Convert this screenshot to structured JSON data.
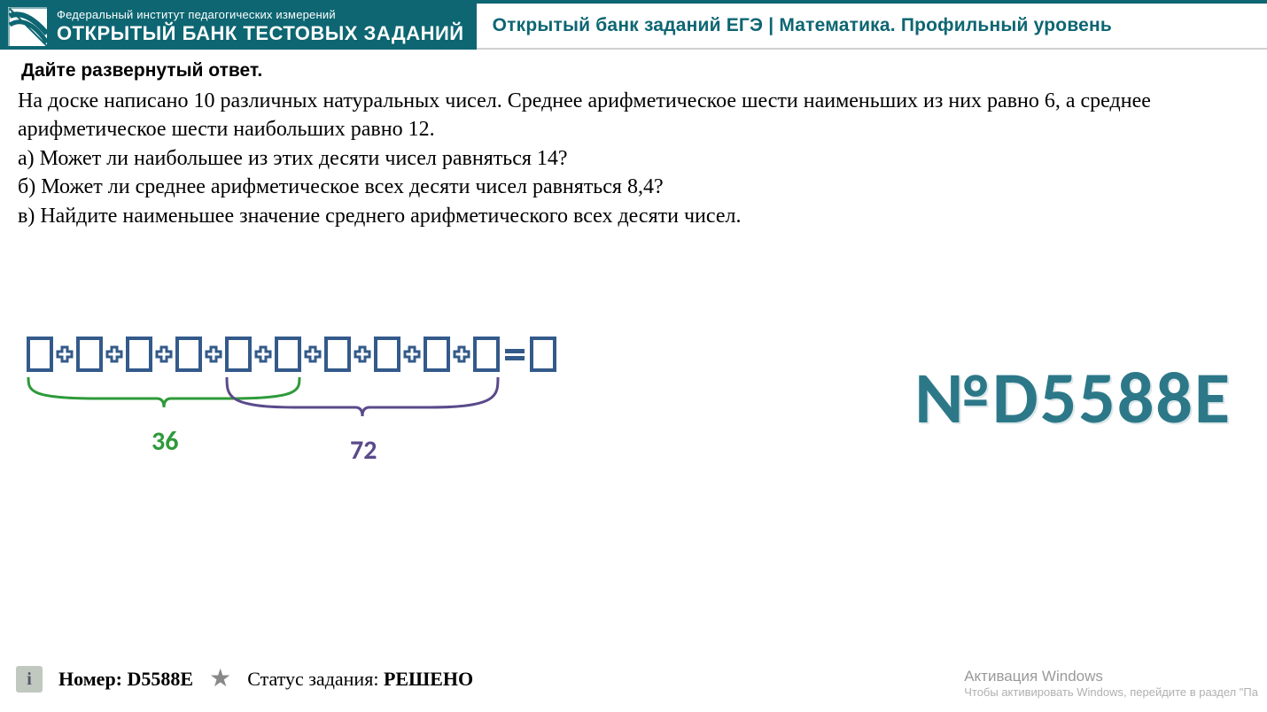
{
  "header": {
    "subtitle": "Федеральный институт педагогических измерений",
    "title": "ОТКРЫТЫЙ БАНК ТЕСТОВЫХ ЗАДАНИЙ",
    "breadcrumb": "Открытый банк заданий ЕГЭ | Математика. Профильный уровень",
    "bg_color": "#0d6672",
    "text_color": "#ffffff"
  },
  "instruction": "Дайте развернутый ответ.",
  "problem": {
    "p1": "На доске написано 10 различных натуральных чисел. Среднее арифметическое шести наименьших из них равно 6, а среднее арифметическое шести наибольших равно 12.",
    "p2": "а) Может ли наибольшее из этих десяти чисел равняться 14?",
    "p3": "б) Может ли среднее арифметическое всех десяти чисел равняться 8,4?",
    "p4": "в) Найдите наименьшее значение среднего арифметического всех десяти чисел."
  },
  "diagram": {
    "box_count": 10,
    "result_boxes": 1,
    "box_border_color": "#335a8a",
    "plus_color": "#335a8a",
    "bracket1": {
      "start_idx": 0,
      "end_idx": 5,
      "label": "36",
      "color": "#2e9a3a"
    },
    "bracket2": {
      "start_idx": 4,
      "end_idx": 9,
      "label": "72",
      "color": "#5a4a8a"
    }
  },
  "big_id": "№D5588E",
  "footer": {
    "number_label": "Номер:",
    "number_value": "D5588E",
    "status_label": "Статус задания:",
    "status_value": "РЕШЕНО"
  },
  "watermark": {
    "line1": "Активация Windows",
    "line2": "Чтобы активировать Windows, перейдите в раздел \"Па"
  }
}
